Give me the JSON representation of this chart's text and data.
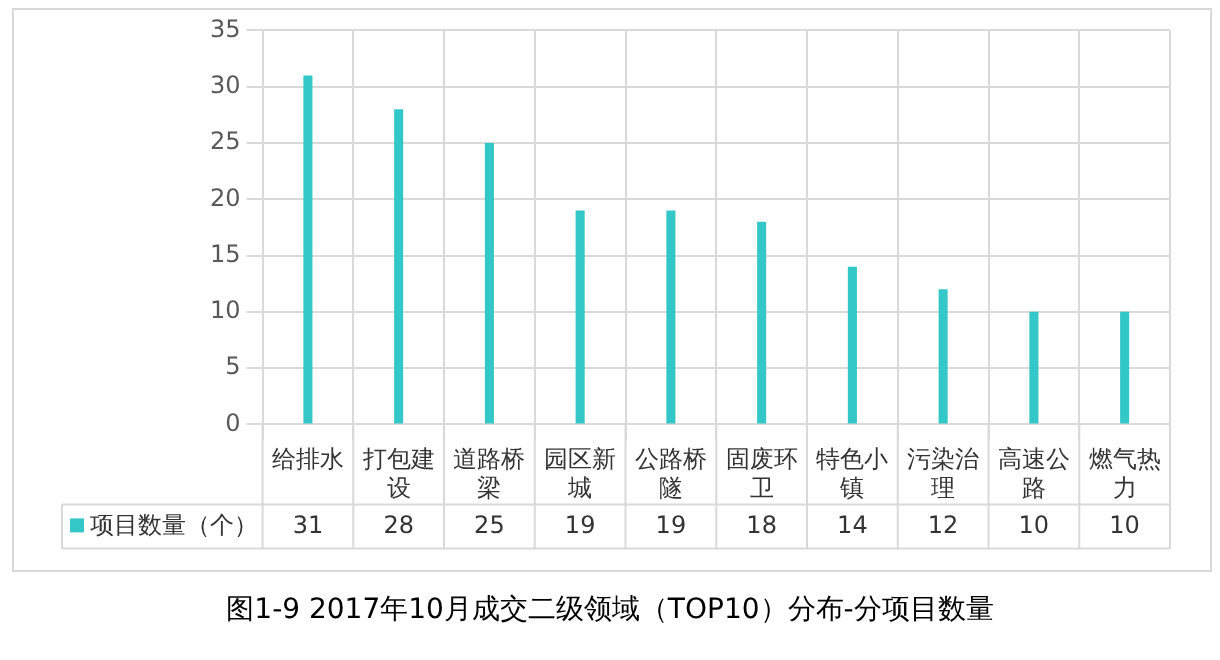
{
  "chart_data": {
    "type": "bar",
    "title": "图1-9 2017年10月成交二级领域（TOP10）分布-分项目数量",
    "categories": [
      "给排水",
      "打包建设",
      "道路桥梁",
      "园区新城",
      "公路桥隧",
      "固废环卫",
      "特色小镇",
      "污染治理",
      "高速公路",
      "燃气热力"
    ],
    "series": [
      {
        "name": "项目数量（个）",
        "color": "#33c7c7",
        "values": [
          31,
          28,
          25,
          19,
          19,
          18,
          14,
          12,
          10,
          10
        ]
      }
    ],
    "ylim": [
      0,
      35
    ],
    "yticks": [
      0,
      5,
      10,
      15,
      20,
      25,
      30,
      35
    ],
    "grid": true,
    "legend": "bottom left",
    "data_labels": true
  }
}
